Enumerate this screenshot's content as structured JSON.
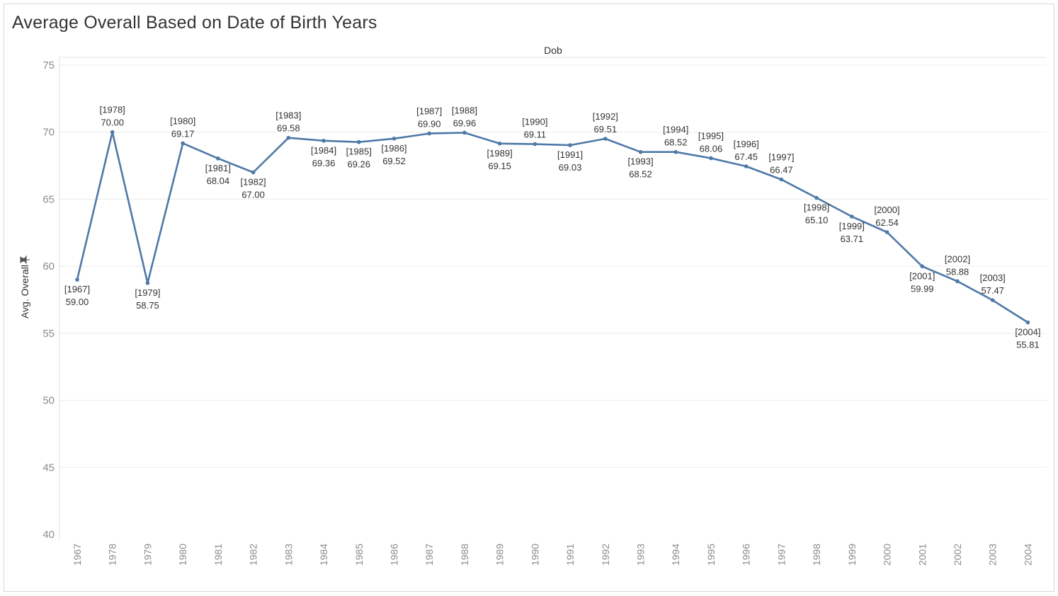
{
  "chart_data": {
    "type": "line",
    "title": "Average Overall Based on Date of Birth Years",
    "column_header": "Dob",
    "ylabel": "Avg. Overall",
    "ylabel_icon": "pin-icon",
    "xlabel": "",
    "ylim": [
      40,
      75
    ],
    "yticks": [
      75,
      70,
      65,
      60,
      55,
      50,
      45,
      40
    ],
    "grid": true,
    "line_color": "#4e79a7",
    "categories": [
      "1967",
      "1978",
      "1979",
      "1980",
      "1981",
      "1982",
      "1983",
      "1984",
      "1985",
      "1986",
      "1987",
      "1988",
      "1989",
      "1990",
      "1991",
      "1992",
      "1993",
      "1994",
      "1995",
      "1996",
      "1997",
      "1998",
      "1999",
      "2000",
      "2001",
      "2002",
      "2003",
      "2004"
    ],
    "values": [
      59.0,
      70.0,
      58.75,
      69.17,
      68.04,
      67.0,
      69.58,
      69.36,
      69.26,
      69.52,
      69.9,
      69.96,
      69.15,
      69.11,
      69.03,
      69.51,
      68.52,
      68.52,
      68.06,
      67.45,
      66.47,
      65.1,
      63.71,
      62.54,
      59.99,
      58.88,
      57.47,
      55.81
    ],
    "point_labels": [
      "[1967]\n59.00",
      "[1978]\n70.00",
      "[1979]\n58.75",
      "[1980]\n69.17",
      "[1981]\n68.04",
      "[1982]\n67.00",
      "[1983]\n69.58",
      "[1984]\n69.36",
      "[1985]\n69.26",
      "[1986]\n69.52",
      "[1987]\n69.90",
      "[1988]\n69.96",
      "[1989]\n69.15",
      "[1990]\n69.11",
      "[1991]\n69.03",
      "[1992]\n69.51",
      "[1993]\n68.52",
      "[1994]\n68.52",
      "[1995]\n68.06",
      "[1996]\n67.45",
      "[1997]\n66.47",
      "[1998]\n65.10",
      "[1999]\n63.71",
      "[2000]\n62.54",
      "[2001]\n59.99",
      "[2002]\n58.88",
      "[2003]\n57.47",
      "[2004]\n55.81"
    ],
    "label_positions": [
      "below",
      "above",
      "below",
      "above",
      "below",
      "below",
      "above",
      "below",
      "below",
      "below",
      "above",
      "above",
      "below",
      "above",
      "below",
      "above",
      "below",
      "above",
      "above",
      "above",
      "above",
      "below",
      "below",
      "above",
      "below",
      "above",
      "above",
      "below"
    ]
  }
}
